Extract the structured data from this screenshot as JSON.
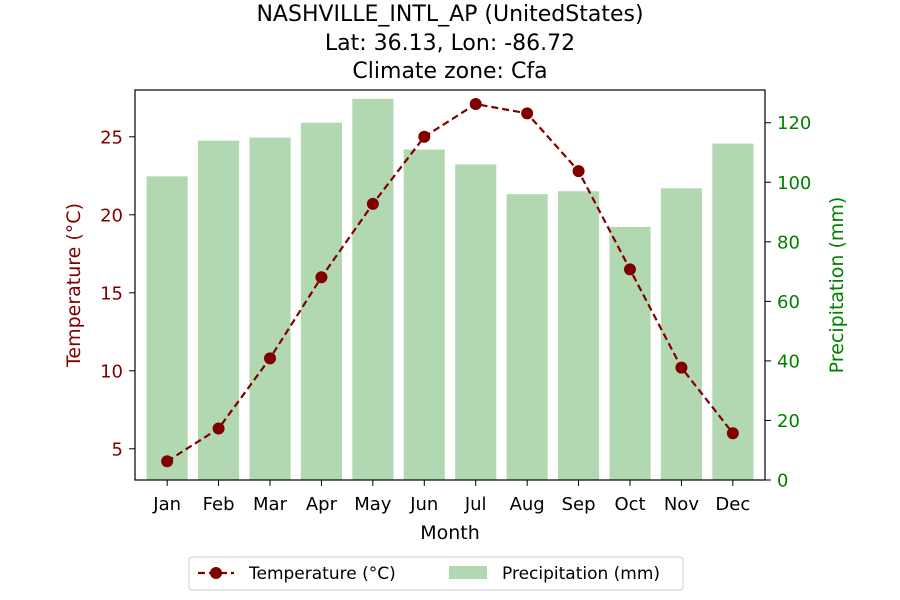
{
  "chart_data": {
    "type": "bar+line",
    "title_lines": [
      "NASHVILLE_INTL_AP (UnitedStates)",
      "Lat: 36.13, Lon: -86.72",
      "Climate zone: Cfa"
    ],
    "xlabel": "Month",
    "categories": [
      "Jan",
      "Feb",
      "Mar",
      "Apr",
      "May",
      "Jun",
      "Jul",
      "Aug",
      "Sep",
      "Oct",
      "Nov",
      "Dec"
    ],
    "temperature": {
      "name": "Temperature (°C)",
      "axis_label": "Temperature (°C)",
      "values": [
        4.2,
        6.3,
        10.8,
        16.0,
        20.7,
        25.0,
        27.1,
        26.5,
        22.8,
        16.5,
        10.2,
        6.0
      ],
      "ylim": [
        3.0,
        28.0
      ],
      "ticks": [
        5,
        10,
        15,
        20,
        25
      ],
      "color": "#800000",
      "line_style": "dashed",
      "marker": "circle"
    },
    "precipitation": {
      "name": "Precipitation (mm)",
      "axis_label": "Precipitation (mm)",
      "values": [
        102,
        114,
        115,
        120,
        128,
        111,
        106,
        96,
        97,
        85,
        98,
        113
      ],
      "ylim": [
        0,
        131
      ],
      "ticks": [
        0,
        20,
        40,
        60,
        80,
        100,
        120
      ],
      "color": "#008000",
      "bar_color": "#b2d8b2"
    },
    "legend": {
      "placement": "bottom-center",
      "items": [
        "Temperature (°C)",
        "Precipitation (mm)"
      ]
    },
    "grid": false
  }
}
